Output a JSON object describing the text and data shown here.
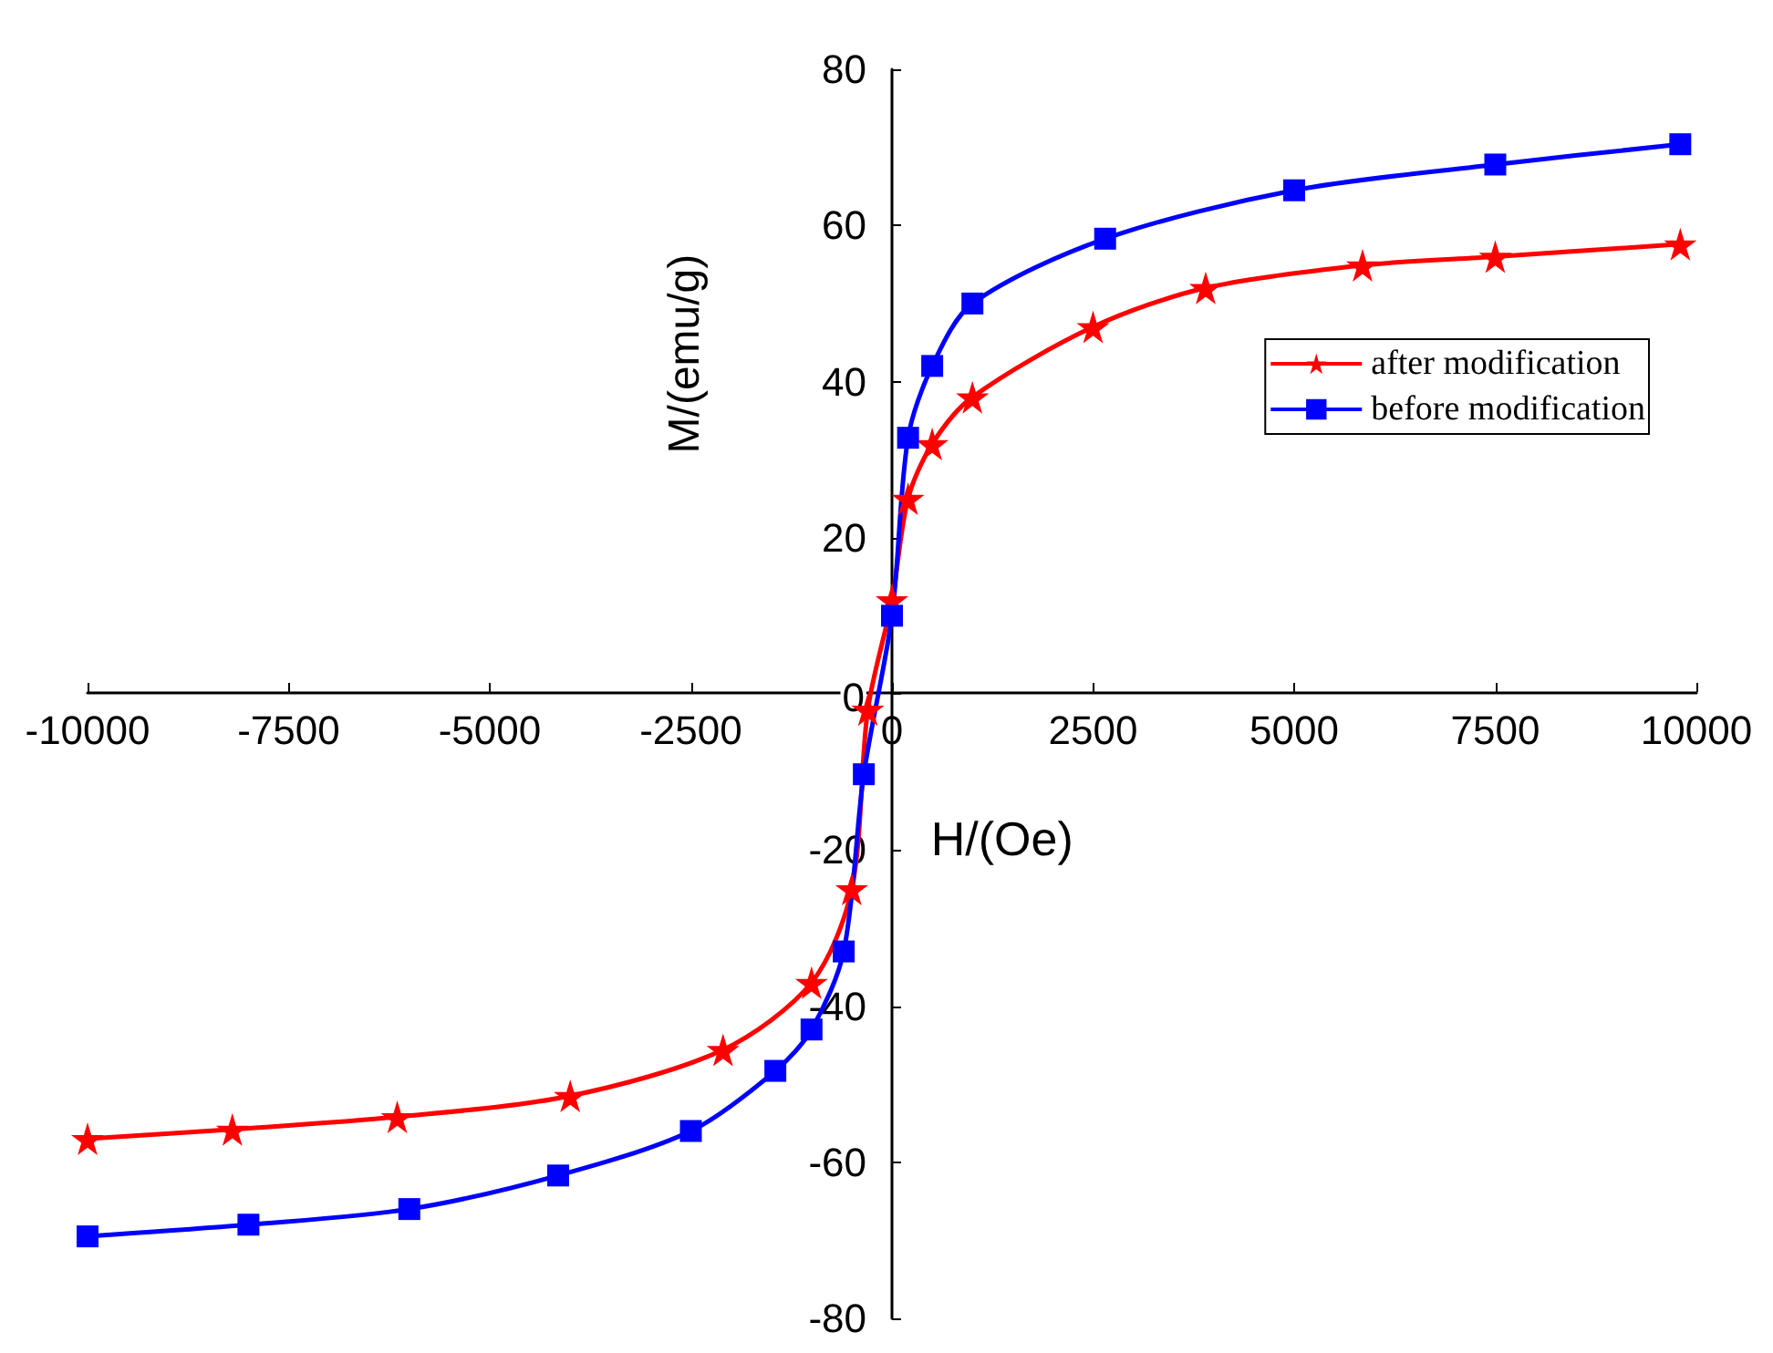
{
  "chart_data": {
    "type": "line",
    "xlabel": "H/(Oe)",
    "ylabel": "M/(emu/g)",
    "xlim": [
      -10000,
      10000
    ],
    "ylim": [
      -80,
      80
    ],
    "xticks": [
      -10000,
      -7500,
      -5000,
      -2500,
      0,
      2500,
      5000,
      7500,
      10000
    ],
    "yticks": [
      -80,
      -60,
      -40,
      -20,
      0,
      20,
      40,
      60,
      80
    ],
    "grid": false,
    "legend": "top right",
    "line_style": "solid",
    "series": [
      {
        "name": "after modification",
        "color": "#ff0000",
        "marker": "star",
        "x": [
          -10000,
          -8200,
          -6150,
          -4000,
          -2100,
          -1000,
          -500,
          -300,
          0,
          200,
          500,
          1000,
          2500,
          3900,
          5850,
          7500,
          9800
        ],
        "values": [
          -57,
          -55.8,
          -54.2,
          -51.5,
          -45.6,
          -37,
          -25,
          -2,
          12,
          25,
          32,
          38,
          47,
          52,
          54.9,
          56,
          57.6
        ]
      },
      {
        "name": "before modification",
        "color": "#0000ff",
        "marker": "square",
        "x": [
          -10000,
          -8000,
          -6000,
          -4150,
          -2500,
          -1450,
          -1000,
          -600,
          -350,
          0,
          200,
          500,
          1000,
          2650,
          5000,
          7500,
          9800
        ],
        "values": [
          -69.5,
          -68,
          -66,
          -61.7,
          -56,
          -48.3,
          -43,
          -33,
          -10.3,
          10,
          32.8,
          42,
          50,
          58.3,
          64.5,
          67.8,
          70.4
        ]
      }
    ]
  }
}
